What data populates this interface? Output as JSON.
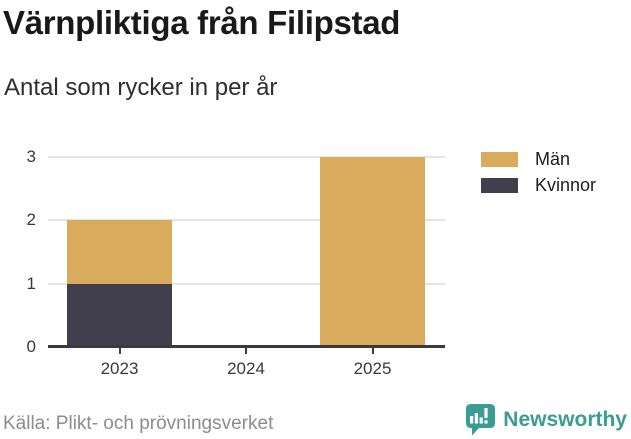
{
  "header": {
    "title": "Värnpliktiga från Filipstad",
    "subtitle": "Antal som rycker in per år"
  },
  "chart_data": {
    "type": "bar",
    "stacked": true,
    "categories": [
      "2023",
      "2024",
      "2025"
    ],
    "series": [
      {
        "name": "Män",
        "color": "#d9ac5d",
        "values": [
          1,
          0,
          3
        ]
      },
      {
        "name": "Kvinnor",
        "color": "#413f4d",
        "values": [
          1,
          0,
          0
        ]
      }
    ],
    "stack_bottom_to_top": [
      "Kvinnor",
      "Män"
    ],
    "title": "Värnpliktiga från Filipstad",
    "subtitle": "Antal som rycker in per år",
    "xlabel": "",
    "ylabel": "",
    "ylim": [
      0,
      3
    ],
    "yticks": [
      0,
      1,
      2,
      3
    ],
    "grid": true,
    "legend_position": "top-right"
  },
  "footer": {
    "source": "Källa: Plikt- och prövningsverket",
    "brand": "Newsworthy"
  },
  "colors": {
    "men": "#d9ac5d",
    "women": "#413f4d",
    "gridline": "#e5e5e5",
    "axis": "#3b3b3b",
    "tick_label": "#3a3a3a",
    "title": "#191919",
    "subtitle": "#2e2e2e",
    "source_text": "#8c8c8c",
    "brand_teal": "#3a9c94",
    "background": "#ffffff"
  }
}
